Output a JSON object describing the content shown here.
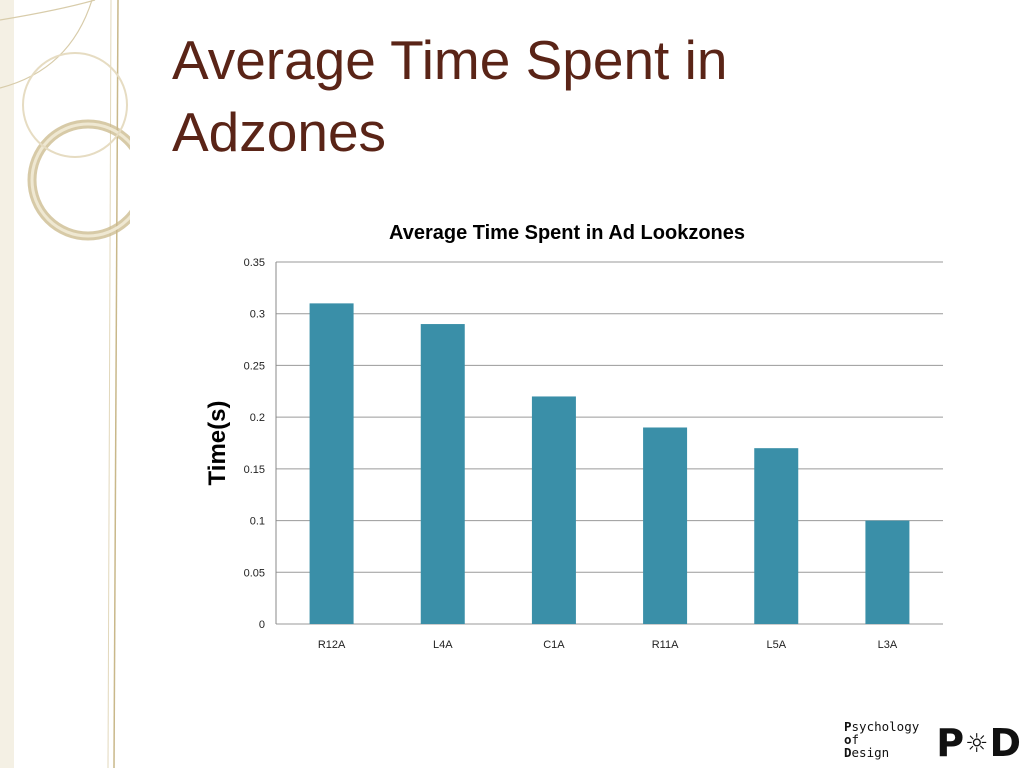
{
  "slide": {
    "title_lines": [
      "Average Time Spent in",
      "Adzones"
    ]
  },
  "chart_data": {
    "type": "bar",
    "title": "Average Time Spent in Ad Lookzones",
    "xlabel": "",
    "ylabel": "Time(s)",
    "categories": [
      "R12A",
      "L4A",
      "C1A",
      "R11A",
      "L5A",
      "L3A"
    ],
    "values": [
      0.31,
      0.29,
      0.22,
      0.19,
      0.17,
      0.1
    ],
    "ylim": [
      0,
      0.35
    ],
    "yticks": [
      "0",
      "0.05",
      "0.1",
      "0.15",
      "0.2",
      "0.25",
      "0.3",
      "0.35"
    ],
    "grid": true,
    "legend": "none",
    "bar_color": "#3a8fa8"
  },
  "logo": {
    "lines": [
      {
        "initial": "P",
        "rest": "sychology"
      },
      {
        "initial": "o",
        "rest": "f"
      },
      {
        "initial": "D",
        "rest": "esign"
      }
    ],
    "mark_left": "P",
    "mark_bulb": "☼",
    "mark_right": "D"
  },
  "colors": {
    "title": "#5a2417",
    "decor_gold": "#c9b88a",
    "decor_cream": "#efe8d2"
  }
}
